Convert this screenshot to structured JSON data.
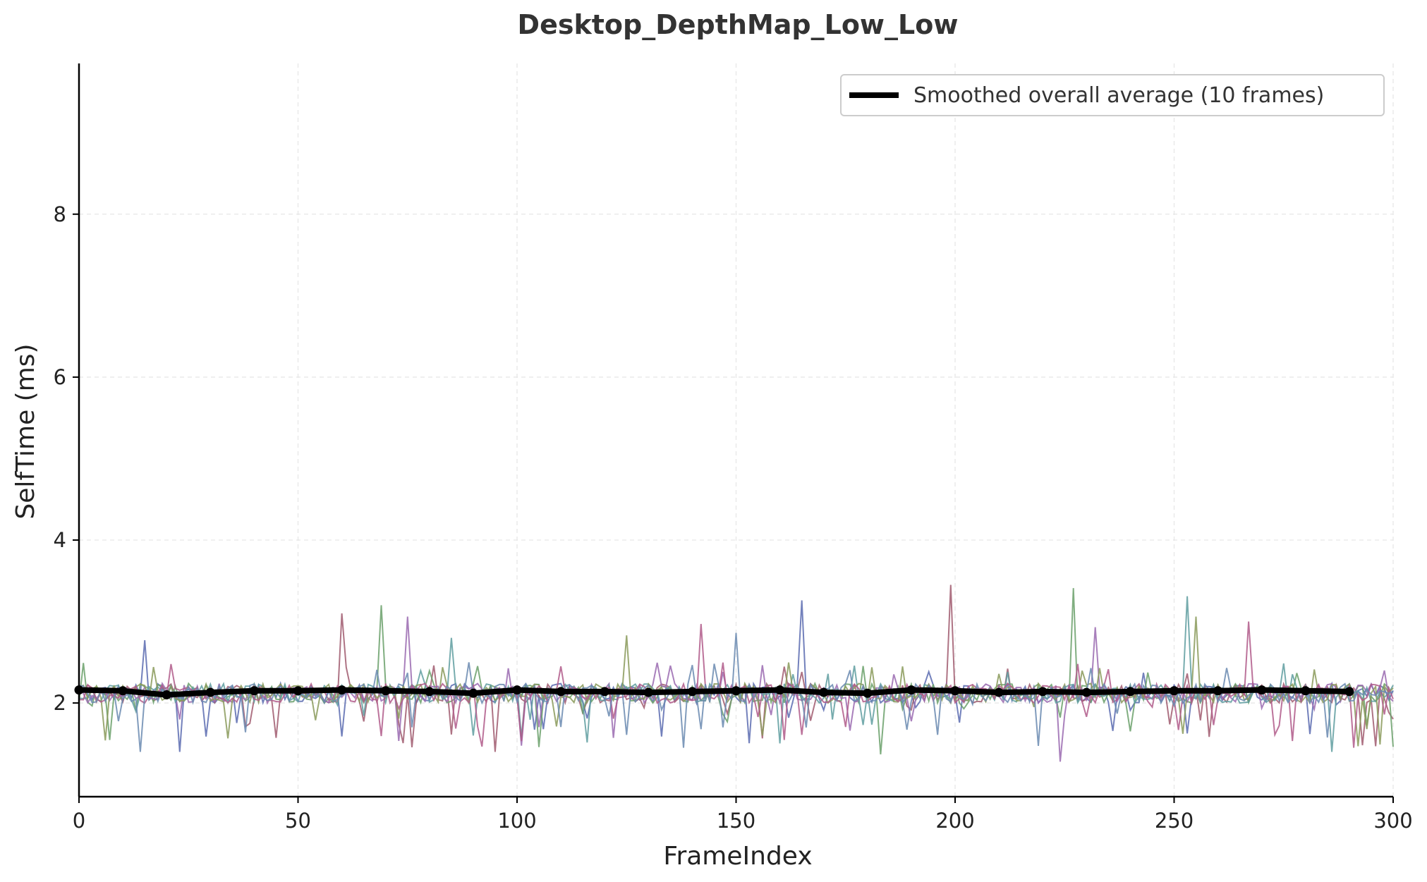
{
  "chart_data": {
    "type": "line",
    "title": "Desktop_DepthMap_Low_Low",
    "xlabel": "FrameIndex",
    "ylabel": "SelfTime (ms)",
    "xlim": [
      0,
      300
    ],
    "ylim": [
      0.85,
      9.85
    ],
    "x_ticks": [
      0,
      50,
      100,
      150,
      200,
      250,
      300
    ],
    "y_ticks": [
      2,
      4,
      6,
      8
    ],
    "grid": true,
    "legend": {
      "position": "top-right",
      "entries": [
        "Smoothed overall average (10 frames)"
      ]
    },
    "series": [
      {
        "name": "Smoothed overall average (10 frames)",
        "color": "#000000",
        "x": [
          0,
          10,
          20,
          30,
          40,
          50,
          60,
          70,
          80,
          90,
          100,
          110,
          120,
          130,
          140,
          150,
          160,
          170,
          180,
          190,
          200,
          210,
          220,
          230,
          240,
          250,
          260,
          270,
          280,
          290
        ],
        "y": [
          2.16,
          2.15,
          2.1,
          2.13,
          2.15,
          2.15,
          2.16,
          2.15,
          2.14,
          2.12,
          2.16,
          2.14,
          2.14,
          2.13,
          2.14,
          2.15,
          2.16,
          2.13,
          2.12,
          2.16,
          2.15,
          2.13,
          2.14,
          2.13,
          2.14,
          2.15,
          2.15,
          2.16,
          2.15,
          2.14
        ]
      }
    ],
    "background_series_colors": [
      "#5b6bb0",
      "#a05a6e",
      "#6aa06a",
      "#9a6ab0",
      "#5f9ea0",
      "#8a9a5b",
      "#b05a8a",
      "#6a8ab0"
    ],
    "background_series_notes": "Multiple thin unlabeled per-run traces fluctuating around 2.1-2.3 ms with spikes",
    "background_spikes": [
      {
        "x": 15,
        "y": 2.77
      },
      {
        "x": 60,
        "y": 3.1
      },
      {
        "x": 69,
        "y": 3.2
      },
      {
        "x": 75,
        "y": 3.06
      },
      {
        "x": 85,
        "y": 2.8
      },
      {
        "x": 125,
        "y": 2.83
      },
      {
        "x": 142,
        "y": 2.97
      },
      {
        "x": 150,
        "y": 2.86
      },
      {
        "x": 165,
        "y": 3.26
      },
      {
        "x": 199,
        "y": 3.45
      },
      {
        "x": 227,
        "y": 3.41
      },
      {
        "x": 232,
        "y": 2.93
      },
      {
        "x": 253,
        "y": 3.31
      },
      {
        "x": 255,
        "y": 3.06
      },
      {
        "x": 267,
        "y": 3.0
      },
      {
        "x": 14,
        "y": 1.4
      },
      {
        "x": 23,
        "y": 1.4
      },
      {
        "x": 95,
        "y": 1.4
      },
      {
        "x": 183,
        "y": 1.37
      },
      {
        "x": 224,
        "y": 1.28
      },
      {
        "x": 286,
        "y": 1.4
      },
      {
        "x": 292,
        "y": 1.47
      }
    ]
  }
}
